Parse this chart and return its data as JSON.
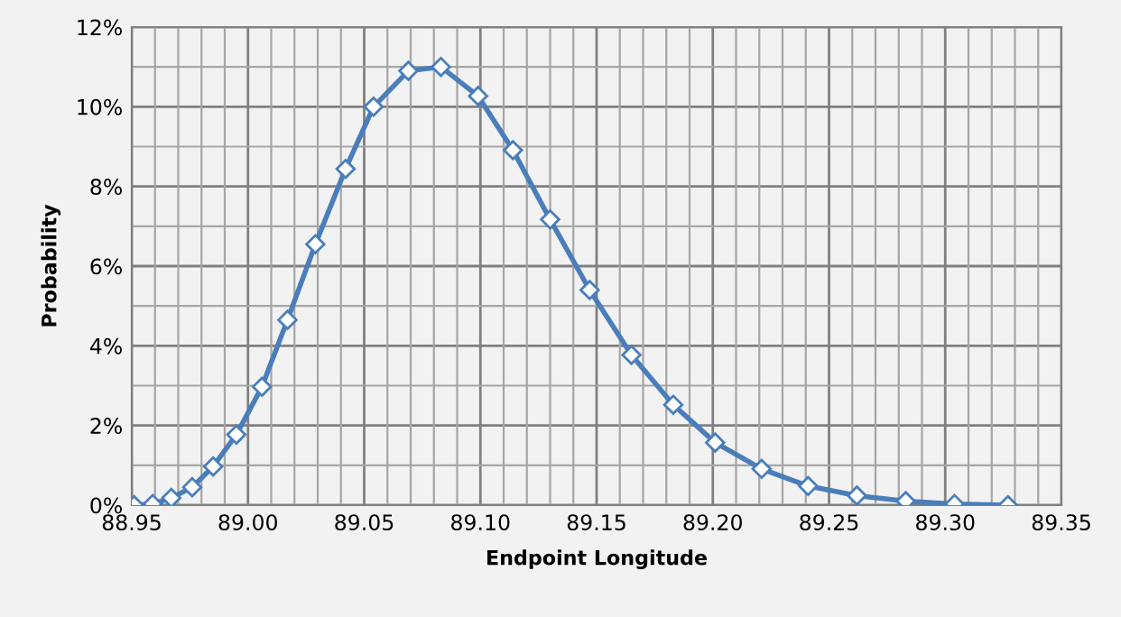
{
  "chart_data": {
    "type": "line",
    "xlabel": "Endpoint Longitude",
    "ylabel": "Probability",
    "x": [
      88.951,
      88.959,
      88.967,
      88.976,
      88.985,
      88.995,
      89.006,
      89.017,
      89.029,
      89.042,
      89.054,
      89.069,
      89.083,
      89.099,
      89.114,
      89.13,
      89.147,
      89.165,
      89.183,
      89.201,
      89.221,
      89.241,
      89.262,
      89.283,
      89.304,
      89.327
    ],
    "series": [
      {
        "color": "#4a7ebb",
        "values": [
          0,
          0.03,
          0.18,
          0.45,
          0.97,
          1.77,
          2.97,
          4.65,
          6.55,
          8.44,
          10.0,
          10.9,
          11.0,
          10.27,
          8.91,
          7.17,
          5.4,
          3.77,
          2.52,
          1.57,
          0.91,
          0.48,
          0.24,
          0.1,
          0.03,
          0
        ]
      }
    ],
    "xlim": [
      88.95,
      89.35
    ],
    "xticks": [
      {
        "value": 88.95,
        "label": "88.95"
      },
      {
        "value": 89.0,
        "label": "89.00"
      },
      {
        "value": 89.05,
        "label": "89.05"
      },
      {
        "value": 89.1,
        "label": "89.10"
      },
      {
        "value": 89.15,
        "label": "89.15"
      },
      {
        "value": 89.2,
        "label": "89.20"
      },
      {
        "value": 89.25,
        "label": "89.25"
      },
      {
        "value": 89.3,
        "label": "89.30"
      },
      {
        "value": 89.35,
        "label": "89.35"
      }
    ],
    "ylim": [
      0,
      12
    ],
    "yticks": [
      {
        "value": 0,
        "label": "0%"
      },
      {
        "value": 2,
        "label": "2%"
      },
      {
        "value": 4,
        "label": "4%"
      },
      {
        "value": 6,
        "label": "6%"
      },
      {
        "value": 8,
        "label": "8%"
      },
      {
        "value": 10,
        "label": "10%"
      },
      {
        "value": 12,
        "label": "12%"
      }
    ],
    "grid": true,
    "marker": "diamond",
    "line_style": "solid",
    "legend": false
  }
}
